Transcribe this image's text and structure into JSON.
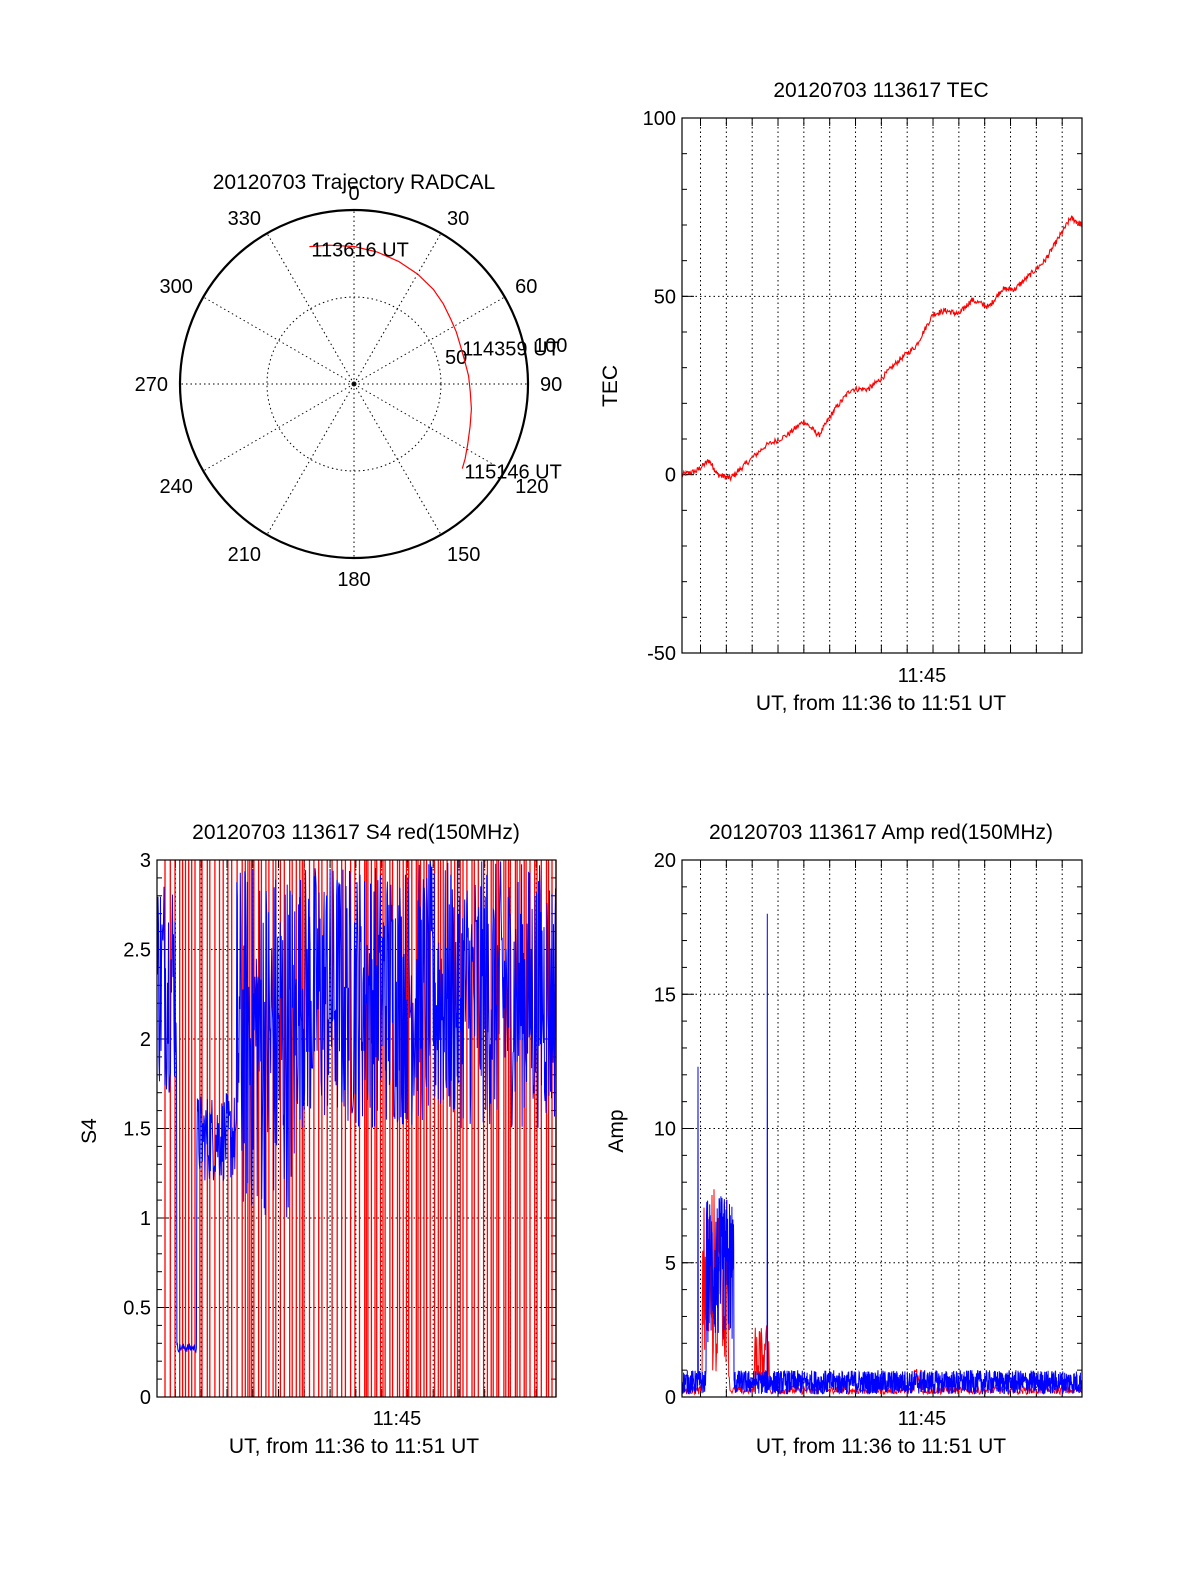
{
  "chart_data": [
    {
      "id": "trajectory",
      "type": "scatter",
      "projection": "polar",
      "title": "20120703 Trajectory RADCAL",
      "azimuth_labels": [
        "0",
        "30",
        "60",
        "90",
        "120",
        "150",
        "180",
        "210",
        "240",
        "270",
        "300",
        "330"
      ],
      "radial_labels": [
        "50",
        "100"
      ],
      "rlim": [
        0,
        100
      ],
      "grid": true,
      "series": [
        {
          "color": "#ff0000",
          "azimuth_deg": [
            342,
            350,
            0,
            10,
            20,
            30,
            40,
            48,
            56,
            63,
            70,
            78,
            86,
            94,
            102,
            110,
            118,
            124,
            128
          ],
          "radius": [
            83,
            81,
            79,
            77,
            75,
            73,
            71,
            69,
            67,
            66,
            65,
            65,
            66,
            67,
            69,
            71,
            74,
            77,
            79
          ]
        }
      ],
      "annotations": [
        {
          "text": "113616 UT",
          "azimuth_deg": 342,
          "radius": 83
        },
        {
          "text": "114359 UT",
          "azimuth_deg": 70,
          "radius": 65
        },
        {
          "text": "115146 UT",
          "azimuth_deg": 128,
          "radius": 79
        }
      ]
    },
    {
      "id": "tec",
      "type": "line",
      "title": "20120703 113617 TEC",
      "xlabel": "UT, from 11:36 to 11:51 UT",
      "ylabel": "TEC",
      "xlim": [
        "11:36:17",
        "11:51:46"
      ],
      "ylim": [
        -50,
        100
      ],
      "yticks": [
        "-50",
        "0",
        "50",
        "100"
      ],
      "xtick_labels": [
        "11:45"
      ],
      "grid": true,
      "series": [
        {
          "color": "#ff0000",
          "x": [
            "11:36:17",
            "11:36:50",
            "11:37:20",
            "11:37:40",
            "11:38:10",
            "11:38:45",
            "11:39:30",
            "11:40:20",
            "11:41:00",
            "11:41:35",
            "11:42:10",
            "11:42:50",
            "11:43:30",
            "11:44:00",
            "11:44:40",
            "11:45:20",
            "11:46:00",
            "11:46:30",
            "11:47:00",
            "11:47:30",
            "11:48:10",
            "11:48:40",
            "11:49:10",
            "11:49:45",
            "11:50:20",
            "11:50:50",
            "11:51:20",
            "11:51:46"
          ],
          "y": [
            0,
            1,
            4,
            0,
            -1,
            3,
            8,
            11,
            15,
            11,
            18,
            24,
            24,
            27,
            32,
            36,
            45,
            46,
            45,
            49,
            47,
            52,
            52,
            56,
            60,
            66,
            72,
            70
          ]
        }
      ]
    },
    {
      "id": "s4",
      "type": "line",
      "title": "20120703 113617 S4 red(150MHz)",
      "xlabel": "UT, from 11:36 to 11:51 UT",
      "ylabel": "S4",
      "xlim": [
        "11:36:17",
        "11:51:46"
      ],
      "ylim": [
        0,
        3
      ],
      "yticks": [
        "0",
        "0.5",
        "1",
        "1.5",
        "2",
        "2.5",
        "3"
      ],
      "xtick_labels": [
        "11:45"
      ],
      "grid": true,
      "series": [
        {
          "color": "#0000ff"
        },
        {
          "color": "#ff0000"
        }
      ]
    },
    {
      "id": "amp",
      "type": "line",
      "title": "20120703 113617 Amp red(150MHz)",
      "xlabel": "UT, from 11:36 to 11:51 UT",
      "ylabel": "Amp",
      "xlim": [
        "11:36:17",
        "11:51:46"
      ],
      "ylim": [
        0,
        20
      ],
      "yticks": [
        "0",
        "5",
        "10",
        "15",
        "20"
      ],
      "xtick_labels": [
        "11:45"
      ],
      "grid": true,
      "series": [
        {
          "color": "#ff0000"
        },
        {
          "color": "#0000ff"
        }
      ]
    }
  ]
}
